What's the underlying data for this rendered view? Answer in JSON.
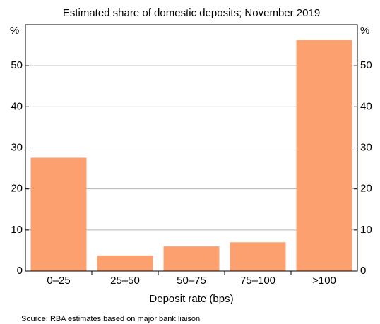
{
  "chart_data": {
    "type": "bar",
    "subtitle": "Estimated share of domestic deposits; November 2019",
    "y_unit": "%",
    "x_label": "Deposit rate (bps)",
    "categories": [
      "0–25",
      "25–50",
      "50–75",
      "75–100",
      ">100"
    ],
    "values": [
      27.6,
      3.8,
      6.0,
      7.0,
      56.3
    ],
    "color": "#fca070",
    "ylim": [
      0,
      60
    ],
    "yticks": [
      0,
      10,
      20,
      30,
      40,
      50
    ],
    "grid": true,
    "source": "Source:   RBA estimates based on major bank liaison"
  }
}
